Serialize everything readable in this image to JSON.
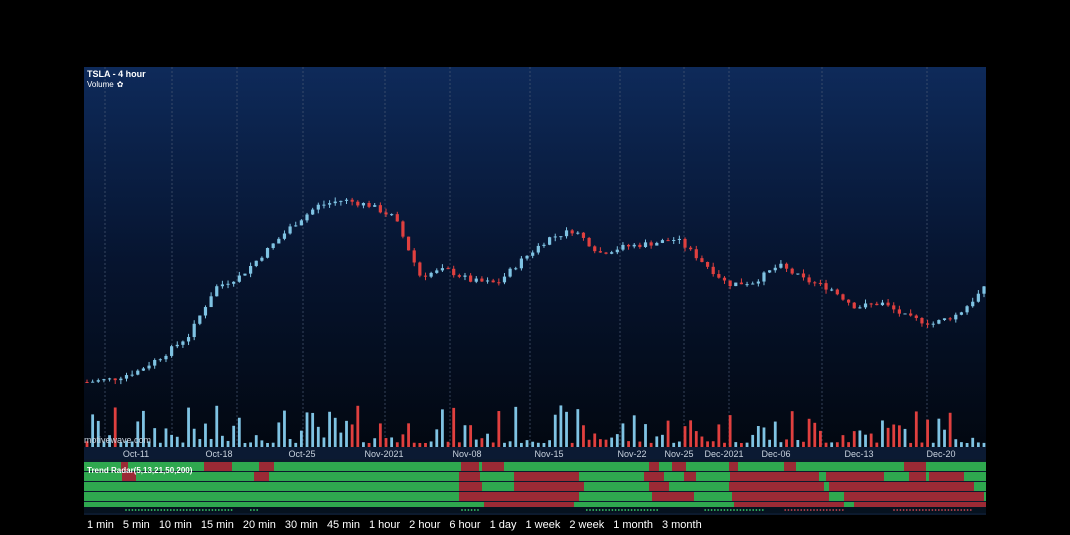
{
  "chart_title": "TSLA - 4 hour",
  "volume_label": "Volume",
  "watermark": "motivewave.com",
  "colors": {
    "up": "#7fc3e3",
    "down": "#e0403f",
    "bg_top": "#0e2a5a",
    "bg_bottom": "#02070f",
    "radar_green": "#2fa84f",
    "radar_red": "#9b2a35"
  },
  "timeframes": [
    "1 min",
    "5 min",
    "10 min",
    "15 min",
    "20 min",
    "30 min",
    "45 min",
    "1 hour",
    "2 hour",
    "6 hour",
    "1 day",
    "1 week",
    "2 week",
    "1 month",
    "3 month"
  ],
  "chart_data": {
    "type": "candlestick",
    "ticker": "TSLA",
    "interval": "4 hour",
    "x_ticks": [
      "Oct-11",
      "Oct-18",
      "Oct-25",
      "Nov-2021",
      "Nov-08",
      "Nov-15",
      "Nov-22",
      "Nov-25",
      "Dec-2021",
      "Dec-06",
      "Dec-13",
      "Dec-20"
    ],
    "close_path": [
      [
        "Oct-08",
        785
      ],
      [
        "Oct-11",
        792
      ],
      [
        "Oct-14",
        812
      ],
      [
        "Oct-18",
        850
      ],
      [
        "Oct-21",
        898
      ],
      [
        "Oct-25",
        1012
      ],
      [
        "Oct-27",
        1040
      ],
      [
        "Oct-29",
        1100
      ],
      [
        "Nov-01",
        1160
      ],
      [
        "Nov-03",
        1208
      ],
      [
        "Nov-04",
        1222
      ],
      [
        "Nov-05",
        1210
      ],
      [
        "Nov-08",
        1180
      ],
      [
        "Nov-09",
        1040
      ],
      [
        "Nov-10",
        1055
      ],
      [
        "Nov-12",
        1028
      ],
      [
        "Nov-15",
        1022
      ],
      [
        "Nov-17",
        1080
      ],
      [
        "Nov-19",
        1130
      ],
      [
        "Nov-22",
        1150
      ],
      [
        "Nov-23",
        1095
      ],
      [
        "Nov-24",
        1110
      ],
      [
        "Nov-26",
        1118
      ],
      [
        "Dec-01",
        1128
      ],
      [
        "Dec-02",
        1075
      ],
      [
        "Dec-03",
        1020
      ],
      [
        "Dec-06",
        1025
      ],
      [
        "Dec-08",
        1065
      ],
      [
        "Dec-09",
        1030
      ],
      [
        "Dec-10",
        1010
      ],
      [
        "Dec-14",
        965
      ],
      [
        "Dec-16",
        975
      ],
      [
        "Dec-17",
        940
      ],
      [
        "Dec-20",
        925
      ],
      [
        "Dec-21",
        948
      ],
      [
        "Dec-22",
        1008
      ]
    ]
  },
  "trend_radar": {
    "label": "Trend Radar(5,13,21,50,200)",
    "periods": [
      5,
      13,
      21,
      50,
      200
    ]
  }
}
